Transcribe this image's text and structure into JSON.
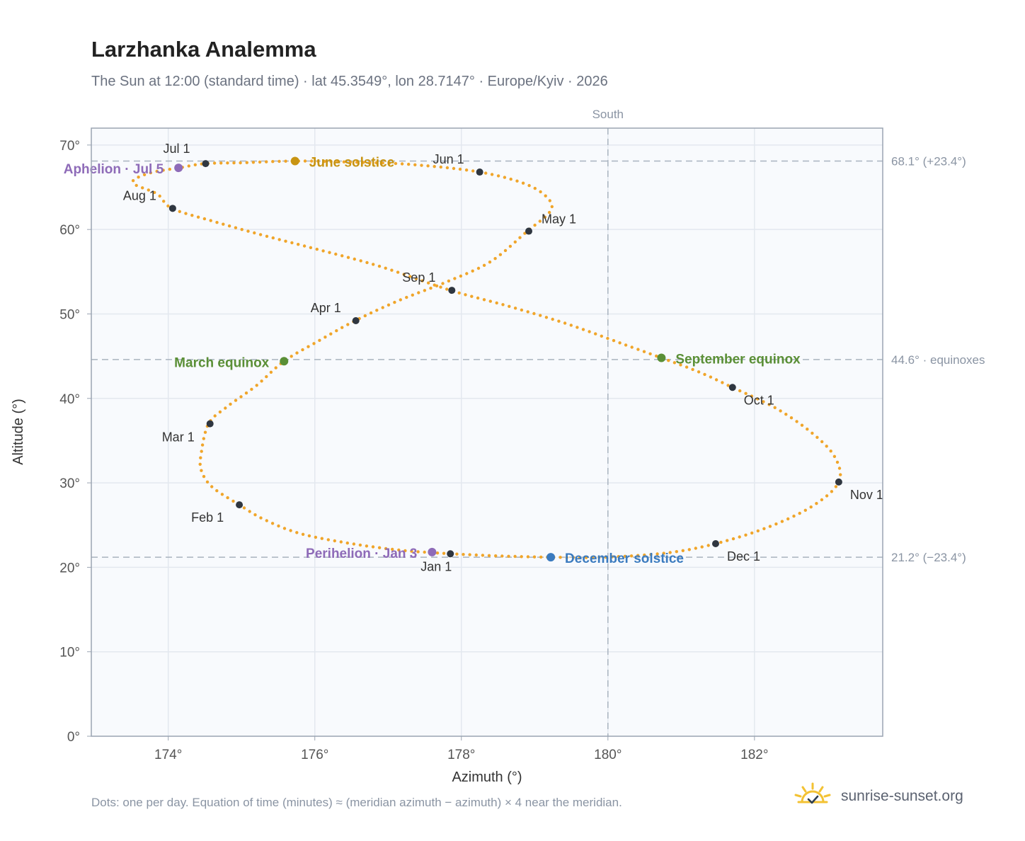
{
  "header": {
    "title": "Larzhanka Analemma",
    "subtitle": "The Sun at 12:00 (standard time) · lat 45.3549°, lon 28.7147° · Europe/Kyiv · 2026"
  },
  "footer": {
    "note": "Dots: one per day. Equation of time (minutes) ≈ (meridian azimuth − azimuth) × 4 near the meridian.",
    "brand": "sunrise-sunset.org"
  },
  "colors": {
    "curve": "#f0a52a",
    "month_marker": "#2f3640",
    "apsis": "#8e6bb8",
    "june_solstice": "#c89412",
    "december_solstice": "#3b7bbf",
    "equinox": "#5a8f36",
    "plot_bg": "#f8fafd",
    "grid": "#e3e8ef",
    "reference_line": "#a9b3bf"
  },
  "chart_data": {
    "type": "scatter",
    "xlabel": "Azimuth (°)",
    "ylabel": "Altitude (°)",
    "xlim": [
      172.95,
      183.75
    ],
    "ylim": [
      0,
      72
    ],
    "x_ticks": [
      174,
      176,
      178,
      180,
      182
    ],
    "x_tick_labels": [
      "174°",
      "176°",
      "178°",
      "180°",
      "182°"
    ],
    "y_ticks": [
      0,
      10,
      20,
      30,
      40,
      50,
      60,
      70
    ],
    "y_tick_labels": [
      "0°",
      "10°",
      "20°",
      "30°",
      "40°",
      "50°",
      "60°",
      "70°"
    ],
    "grid": true,
    "series": [
      {
        "kind": "analemma_path",
        "points": [
          [
            177.85,
            21.6
          ],
          [
            177.2,
            22.0
          ],
          [
            176.5,
            22.8
          ],
          [
            175.8,
            24.0
          ],
          [
            175.3,
            25.7
          ],
          [
            174.97,
            27.4
          ],
          [
            174.6,
            29.5
          ],
          [
            174.45,
            31.5
          ],
          [
            174.45,
            33.5
          ],
          [
            174.55,
            37.0
          ],
          [
            174.8,
            39.0
          ],
          [
            175.2,
            41.5
          ],
          [
            175.58,
            44.4
          ],
          [
            176.05,
            46.8
          ],
          [
            176.55,
            49.2
          ],
          [
            177.15,
            51.6
          ],
          [
            177.8,
            53.8
          ],
          [
            178.4,
            56.2
          ],
          [
            178.9,
            59.8
          ],
          [
            179.2,
            62.0
          ],
          [
            179.2,
            63.5
          ],
          [
            178.9,
            65.3
          ],
          [
            178.25,
            66.8
          ],
          [
            177.3,
            67.7
          ],
          [
            176.4,
            68.0
          ],
          [
            175.7,
            68.1
          ],
          [
            175.0,
            67.9
          ],
          [
            174.5,
            67.8
          ],
          [
            174.15,
            67.3
          ],
          [
            173.8,
            66.8
          ],
          [
            173.55,
            66.0
          ],
          [
            173.55,
            65.3
          ],
          [
            173.85,
            64.2
          ],
          [
            174.05,
            62.5
          ],
          [
            174.6,
            61.0
          ],
          [
            175.3,
            59.3
          ],
          [
            176.1,
            57.5
          ],
          [
            176.9,
            55.6
          ],
          [
            177.85,
            52.8
          ],
          [
            178.65,
            50.9
          ],
          [
            179.45,
            48.8
          ],
          [
            180.25,
            46.3
          ],
          [
            180.73,
            44.8
          ],
          [
            181.25,
            43.1
          ],
          [
            181.7,
            41.3
          ],
          [
            182.3,
            38.8
          ],
          [
            182.8,
            35.8
          ],
          [
            183.1,
            33.0
          ],
          [
            183.15,
            30.1
          ],
          [
            182.8,
            27.3
          ],
          [
            182.2,
            24.8
          ],
          [
            181.47,
            22.8
          ],
          [
            180.8,
            21.7
          ],
          [
            179.95,
            21.2
          ],
          [
            179.22,
            21.2
          ],
          [
            178.5,
            21.35
          ],
          [
            177.85,
            21.6
          ]
        ]
      }
    ],
    "month_markers": [
      {
        "label": "Jan 1",
        "az": 177.85,
        "alt": 21.6
      },
      {
        "label": "Feb 1",
        "az": 174.97,
        "alt": 27.4
      },
      {
        "label": "Mar 1",
        "az": 174.57,
        "alt": 37.0
      },
      {
        "label": "Apr 1",
        "az": 176.56,
        "alt": 49.2
      },
      {
        "label": "May 1",
        "az": 178.92,
        "alt": 59.8
      },
      {
        "label": "Jun 1",
        "az": 178.25,
        "alt": 66.8
      },
      {
        "label": "Jul 1",
        "az": 174.51,
        "alt": 67.8
      },
      {
        "label": "Aug 1",
        "az": 174.06,
        "alt": 62.5
      },
      {
        "label": "Sep 1",
        "az": 177.87,
        "alt": 52.8
      },
      {
        "label": "Oct 1",
        "az": 181.7,
        "alt": 41.3
      },
      {
        "label": "Nov 1",
        "az": 183.15,
        "alt": 30.1
      },
      {
        "label": "Dec 1",
        "az": 181.47,
        "alt": 22.8
      }
    ],
    "events": [
      {
        "label": "June solstice",
        "az": 175.73,
        "alt": 68.1,
        "color_key": "june_solstice"
      },
      {
        "label": "December solstice",
        "az": 179.22,
        "alt": 21.2,
        "color_key": "december_solstice"
      },
      {
        "label": "March equinox",
        "az": 175.58,
        "alt": 44.4,
        "color_key": "equinox"
      },
      {
        "label": "September equinox",
        "az": 180.73,
        "alt": 44.8,
        "color_key": "equinox"
      },
      {
        "label": "Aphelion · Jul 5",
        "az": 174.14,
        "alt": 67.3,
        "color_key": "apsis"
      },
      {
        "label": "Perihelion · Jan 3",
        "az": 177.6,
        "alt": 21.8,
        "color_key": "apsis"
      }
    ],
    "reference_lines": [
      {
        "axis": "y",
        "value": 68.1,
        "label": "68.1° (+23.4°)"
      },
      {
        "axis": "y",
        "value": 44.6,
        "label": "44.6° · equinoxes"
      },
      {
        "axis": "y",
        "value": 21.2,
        "label": "21.2° (−23.4°)"
      },
      {
        "axis": "x",
        "value": 180,
        "label": "South"
      }
    ]
  }
}
